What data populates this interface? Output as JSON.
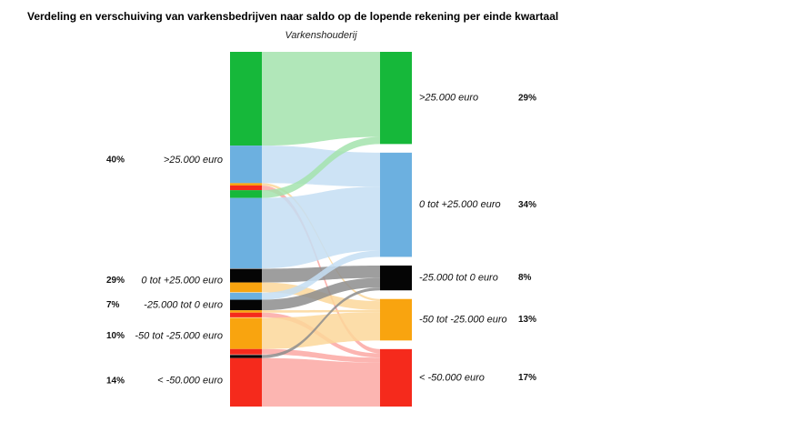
{
  "chart_data": {
    "type": "sankey",
    "title": "Verdeling en verschuiving van varkensbedrijven naar saldo op de lopende rekening per einde kwartaal",
    "subtitle": "Varkenshouderij",
    "categories": [
      ">25.000 euro",
      "0 tot +25.000 euro",
      "-25.000 tot 0 euro",
      "-50 tot -25.000 euro",
      "< -50.000 euro"
    ],
    "colors": [
      "#16b83a",
      "#6cb0e0",
      "#050505",
      "#f9a40f",
      "#f52a1c"
    ],
    "link_colors": [
      "#a3e3ad",
      "#c4def3",
      "#8d8d8d",
      "#fcd79a",
      "#fca8a3"
    ],
    "left": {
      "labels": [
        ">25.000 euro",
        "0 tot +25.000 euro",
        "-25.000 tot 0 euro",
        "-50 tot -25.000 euro",
        "< -50.000 euro"
      ],
      "percentages": [
        "40%",
        "29%",
        "7%",
        "10%",
        "14%"
      ]
    },
    "right": {
      "labels": [
        ">25.000 euro",
        "0 tot +25.000 euro",
        "-25.000 tot 0 euro",
        "-50 tot -25.000 euro",
        "< -50.000 euro"
      ],
      "percentages": [
        "29%",
        "34%",
        "8%",
        "13%",
        "17%"
      ]
    },
    "flows": [
      {
        "from": ">25.000 euro",
        "to": ">25.000 euro",
        "value": 24.0
      },
      {
        "from": ">25.000 euro",
        "to": "0 tot +25.000 euro",
        "value": 9.6
      },
      {
        "from": ">25.000 euro",
        "to": "-50 tot -25.000 euro",
        "value": 0.6
      },
      {
        "from": ">25.000 euro",
        "to": "< -50.000 euro",
        "value": 1.2
      },
      {
        "from": ">25.000 euro",
        "to": ">25.000 euro",
        "value": 2.0
      },
      {
        "from": ">25.000 euro",
        "to": "0 tot +25.000 euro",
        "value": 18.0
      },
      {
        "from": "0 tot +25.000 euro",
        "to": "-25.000 tot 0 euro",
        "value": 3.5
      },
      {
        "from": "0 tot +25.000 euro",
        "to": "-50 tot -25.000 euro",
        "value": 2.5
      },
      {
        "from": "-25.000 tot 0 euro",
        "to": "0 tot +25.000 euro",
        "value": 1.8
      },
      {
        "from": "-25.000 tot 0 euro",
        "to": "-25.000 tot 0 euro",
        "value": 2.7
      },
      {
        "from": "-25.000 tot 0 euro",
        "to": "-50 tot -25.000 euro",
        "value": 0.6
      },
      {
        "from": "-25.000 tot 0 euro",
        "to": "< -50.000 euro",
        "value": 1.2
      },
      {
        "from": "-50 tot -25.000 euro",
        "to": "-50 tot -25.000 euro",
        "value": 8.0
      },
      {
        "from": "-50 tot -25.000 euro",
        "to": "< -50.000 euro",
        "value": 1.4
      },
      {
        "from": "< -50.000 euro",
        "to": "-25.000 tot 0 euro",
        "value": 0.8
      },
      {
        "from": "< -50.000 euro",
        "to": "< -50.000 euro",
        "value": 12.4
      }
    ]
  }
}
